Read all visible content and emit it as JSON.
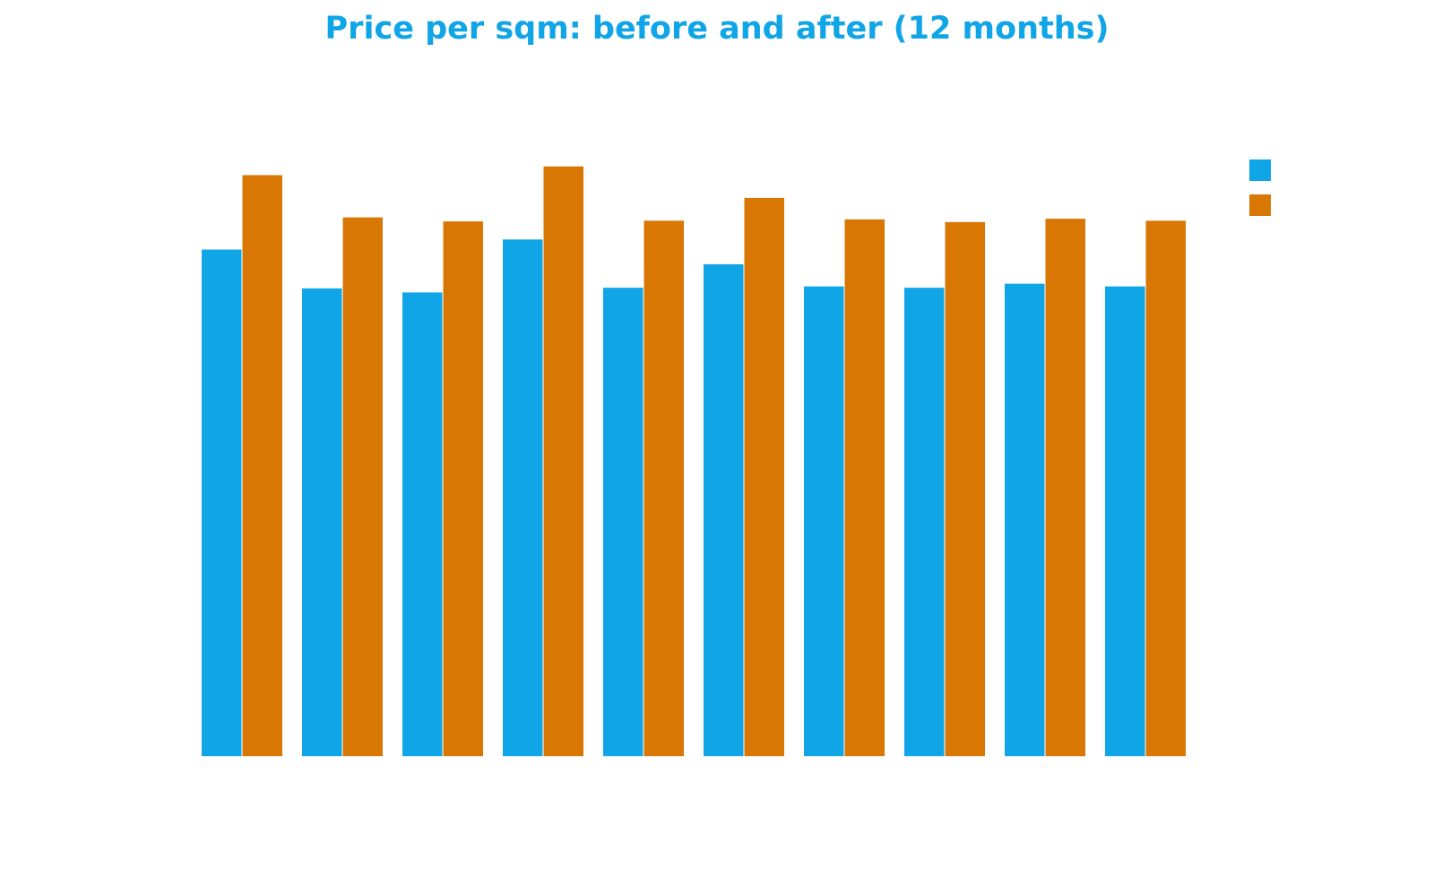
{
  "chart_data": {
    "type": "bar",
    "title": "Price per sqm: before and after (12 months)",
    "xlabel": "",
    "ylabel": "",
    "categories": [
      "",
      "",
      "",
      "",
      "",
      "",
      "",
      "",
      "",
      ""
    ],
    "ylim": [
      0,
      1
    ],
    "grid": false,
    "legend": "top-right",
    "series": [
      {
        "color": "#10a5e6",
        "values": [
          0.756,
          0.698,
          0.692,
          0.771,
          0.699,
          0.734,
          0.701,
          0.699,
          0.705,
          0.701
        ]
      },
      {
        "color": "#d97704",
        "values": [
          0.867,
          0.804,
          0.798,
          0.88,
          0.799,
          0.833,
          0.801,
          0.797,
          0.802,
          0.799
        ]
      }
    ]
  },
  "colors": {
    "title": "#10a5e6",
    "background": "#ffffff"
  }
}
